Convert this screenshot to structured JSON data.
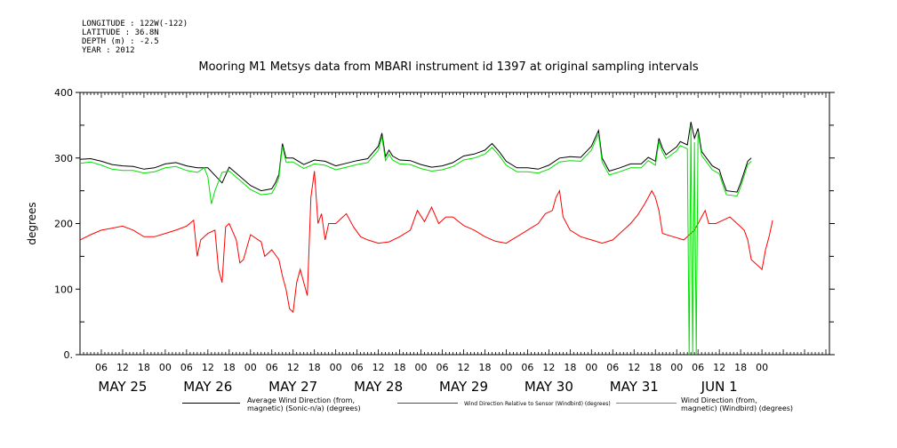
{
  "header": {
    "lines": [
      "LONGITUDE : 122W(-122)",
      "LATITUDE : 36.8N",
      "DEPTH (m) : -2.5",
      "YEAR : 2012"
    ]
  },
  "chart_data": {
    "type": "line",
    "title": "Mooring M1 Metsys data from MBARI instrument id 1397 at original sampling intervals",
    "ylabel": "degrees",
    "xlabel": "",
    "ylim": [
      0,
      400
    ],
    "y_ticks": [
      0,
      100,
      200,
      300,
      400
    ],
    "y_tick_labels": [
      "0.",
      "100",
      "200",
      "300",
      "400"
    ],
    "x_range_hours": [
      0,
      211
    ],
    "x_hour_tick_labels": [
      "06",
      "12",
      "18",
      "00",
      "06",
      "12",
      "18",
      "00",
      "06",
      "12",
      "18",
      "00",
      "06",
      "12",
      "18",
      "00",
      "06",
      "12",
      "18",
      "00",
      "06",
      "12",
      "18",
      "00",
      "06",
      "12",
      "18",
      "00",
      "06",
      "12",
      "18",
      "00"
    ],
    "day_labels": [
      "MAY 25",
      "MAY 26",
      "MAY 27",
      "MAY 28",
      "MAY 29",
      "MAY 30",
      "MAY 31",
      "JUN  1"
    ],
    "grid": false,
    "legend_position": "bottom",
    "series": [
      {
        "name": "Average Wind Direction (from,\nmagnetic) (Sonic-n/a) (degrees)",
        "color": "#000000",
        "points": [
          [
            0,
            298
          ],
          [
            3,
            299
          ],
          [
            6,
            295
          ],
          [
            9,
            290
          ],
          [
            12,
            288
          ],
          [
            15,
            287
          ],
          [
            18,
            283
          ],
          [
            21,
            285
          ],
          [
            24,
            291
          ],
          [
            27,
            293
          ],
          [
            30,
            288
          ],
          [
            33,
            285
          ],
          [
            36,
            285
          ],
          [
            40,
            262
          ],
          [
            42,
            286
          ],
          [
            45,
            272
          ],
          [
            48,
            258
          ],
          [
            51,
            250
          ],
          [
            54,
            253
          ],
          [
            55,
            262
          ],
          [
            56,
            275
          ],
          [
            57,
            322
          ],
          [
            58,
            300
          ],
          [
            60,
            300
          ],
          [
            63,
            290
          ],
          [
            66,
            297
          ],
          [
            69,
            295
          ],
          [
            72,
            288
          ],
          [
            75,
            292
          ],
          [
            78,
            296
          ],
          [
            81,
            299
          ],
          [
            84,
            318
          ],
          [
            85,
            338
          ],
          [
            86,
            302
          ],
          [
            87,
            312
          ],
          [
            88,
            303
          ],
          [
            90,
            297
          ],
          [
            93,
            296
          ],
          [
            96,
            290
          ],
          [
            99,
            286
          ],
          [
            102,
            288
          ],
          [
            105,
            293
          ],
          [
            108,
            303
          ],
          [
            111,
            306
          ],
          [
            114,
            312
          ],
          [
            116,
            322
          ],
          [
            118,
            310
          ],
          [
            120,
            295
          ],
          [
            123,
            285
          ],
          [
            126,
            285
          ],
          [
            129,
            283
          ],
          [
            132,
            289
          ],
          [
            135,
            300
          ],
          [
            138,
            302
          ],
          [
            141,
            301
          ],
          [
            144,
            318
          ],
          [
            145,
            330
          ],
          [
            146,
            342
          ],
          [
            147,
            300
          ],
          [
            149,
            280
          ],
          [
            152,
            285
          ],
          [
            155,
            291
          ],
          [
            158,
            291
          ],
          [
            160,
            301
          ],
          [
            162,
            295
          ],
          [
            163,
            330
          ],
          [
            164,
            315
          ],
          [
            165,
            305
          ],
          [
            168,
            317
          ],
          [
            169,
            325
          ],
          [
            171,
            320
          ],
          [
            172,
            355
          ],
          [
            173,
            330
          ],
          [
            174,
            345
          ],
          [
            175,
            310
          ],
          [
            178,
            288
          ],
          [
            180,
            282
          ],
          [
            181,
            265
          ],
          [
            182,
            250
          ],
          [
            185,
            248
          ],
          [
            186,
            262
          ],
          [
            188,
            295
          ],
          [
            189,
            300
          ]
        ]
      },
      {
        "name": "Wind Direction Relative to Sensor (Windbird) (degrees)",
        "color": "#ff0000",
        "points": [
          [
            0,
            175
          ],
          [
            3,
            183
          ],
          [
            6,
            190
          ],
          [
            9,
            193
          ],
          [
            12,
            196
          ],
          [
            15,
            190
          ],
          [
            18,
            180
          ],
          [
            21,
            180
          ],
          [
            24,
            185
          ],
          [
            27,
            190
          ],
          [
            30,
            196
          ],
          [
            32,
            205
          ],
          [
            33,
            150
          ],
          [
            34,
            175
          ],
          [
            36,
            185
          ],
          [
            38,
            190
          ],
          [
            39,
            130
          ],
          [
            40,
            110
          ],
          [
            41,
            195
          ],
          [
            42,
            200
          ],
          [
            44,
            175
          ],
          [
            45,
            140
          ],
          [
            46,
            145
          ],
          [
            48,
            183
          ],
          [
            51,
            172
          ],
          [
            52,
            150
          ],
          [
            54,
            160
          ],
          [
            56,
            145
          ],
          [
            57,
            120
          ],
          [
            58,
            100
          ],
          [
            59,
            70
          ],
          [
            60,
            65
          ],
          [
            61,
            110
          ],
          [
            62,
            130
          ],
          [
            63,
            110
          ],
          [
            64,
            90
          ],
          [
            65,
            240
          ],
          [
            66,
            280
          ],
          [
            67,
            200
          ],
          [
            68,
            215
          ],
          [
            69,
            175
          ],
          [
            70,
            200
          ],
          [
            72,
            200
          ],
          [
            74,
            210
          ],
          [
            75,
            215
          ],
          [
            77,
            195
          ],
          [
            79,
            180
          ],
          [
            81,
            175
          ],
          [
            84,
            170
          ],
          [
            87,
            172
          ],
          [
            90,
            180
          ],
          [
            93,
            190
          ],
          [
            95,
            220
          ],
          [
            97,
            203
          ],
          [
            99,
            225
          ],
          [
            101,
            200
          ],
          [
            103,
            210
          ],
          [
            105,
            210
          ],
          [
            108,
            197
          ],
          [
            111,
            190
          ],
          [
            114,
            180
          ],
          [
            117,
            173
          ],
          [
            120,
            170
          ],
          [
            123,
            180
          ],
          [
            126,
            190
          ],
          [
            129,
            200
          ],
          [
            131,
            215
          ],
          [
            133,
            220
          ],
          [
            134,
            240
          ],
          [
            135,
            250
          ],
          [
            136,
            210
          ],
          [
            138,
            190
          ],
          [
            141,
            180
          ],
          [
            144,
            175
          ],
          [
            147,
            170
          ],
          [
            150,
            175
          ],
          [
            153,
            190
          ],
          [
            155,
            200
          ],
          [
            157,
            213
          ],
          [
            159,
            230
          ],
          [
            161,
            250
          ],
          [
            162,
            240
          ],
          [
            163,
            220
          ],
          [
            164,
            185
          ],
          [
            167,
            180
          ],
          [
            170,
            175
          ],
          [
            173,
            190
          ],
          [
            175,
            210
          ],
          [
            176,
            220
          ],
          [
            177,
            200
          ],
          [
            179,
            200
          ],
          [
            181,
            205
          ],
          [
            183,
            210
          ],
          [
            185,
            200
          ],
          [
            187,
            190
          ],
          [
            188,
            175
          ],
          [
            189,
            145
          ],
          [
            191,
            135
          ],
          [
            192,
            130
          ],
          [
            193,
            160
          ],
          [
            194,
            180
          ],
          [
            195,
            205
          ]
        ]
      },
      {
        "name": "Wind Direction (from,\nmagnetic) (Windbird) (degrees)",
        "color": "#00e000",
        "points": [
          [
            0,
            292
          ],
          [
            3,
            294
          ],
          [
            6,
            289
          ],
          [
            9,
            283
          ],
          [
            12,
            281
          ],
          [
            15,
            281
          ],
          [
            18,
            277
          ],
          [
            21,
            279
          ],
          [
            24,
            285
          ],
          [
            27,
            287
          ],
          [
            30,
            281
          ],
          [
            33,
            278
          ],
          [
            35,
            285
          ],
          [
            36,
            271
          ],
          [
            37,
            230
          ],
          [
            38,
            250
          ],
          [
            40,
            278
          ],
          [
            42,
            280
          ],
          [
            45,
            266
          ],
          [
            48,
            252
          ],
          [
            51,
            244
          ],
          [
            54,
            246
          ],
          [
            55,
            256
          ],
          [
            56,
            270
          ],
          [
            57,
            318
          ],
          [
            58,
            294
          ],
          [
            60,
            294
          ],
          [
            63,
            284
          ],
          [
            66,
            291
          ],
          [
            69,
            289
          ],
          [
            72,
            282
          ],
          [
            75,
            286
          ],
          [
            78,
            290
          ],
          [
            81,
            293
          ],
          [
            84,
            312
          ],
          [
            85,
            333
          ],
          [
            86,
            296
          ],
          [
            87,
            306
          ],
          [
            88,
            297
          ],
          [
            90,
            291
          ],
          [
            93,
            290
          ],
          [
            96,
            284
          ],
          [
            99,
            280
          ],
          [
            102,
            282
          ],
          [
            105,
            287
          ],
          [
            108,
            297
          ],
          [
            111,
            300
          ],
          [
            114,
            306
          ],
          [
            116,
            316
          ],
          [
            118,
            304
          ],
          [
            120,
            289
          ],
          [
            123,
            279
          ],
          [
            126,
            279
          ],
          [
            129,
            277
          ],
          [
            132,
            283
          ],
          [
            135,
            294
          ],
          [
            138,
            296
          ],
          [
            141,
            295
          ],
          [
            144,
            312
          ],
          [
            145,
            325
          ],
          [
            146,
            336
          ],
          [
            147,
            294
          ],
          [
            149,
            274
          ],
          [
            152,
            279
          ],
          [
            155,
            285
          ],
          [
            158,
            285
          ],
          [
            160,
            296
          ],
          [
            162,
            289
          ],
          [
            163,
            325
          ],
          [
            164,
            309
          ],
          [
            165,
            299
          ],
          [
            168,
            311
          ],
          [
            169,
            319
          ],
          [
            171,
            314
          ],
          [
            171.5,
            0
          ],
          [
            172,
            350
          ],
          [
            172.5,
            0
          ],
          [
            173,
            324
          ],
          [
            173.5,
            0
          ],
          [
            174,
            340
          ],
          [
            175,
            304
          ],
          [
            178,
            282
          ],
          [
            180,
            276
          ],
          [
            181,
            259
          ],
          [
            182,
            244
          ],
          [
            185,
            242
          ],
          [
            186,
            256
          ],
          [
            188,
            290
          ],
          [
            189,
            295
          ]
        ]
      }
    ]
  }
}
